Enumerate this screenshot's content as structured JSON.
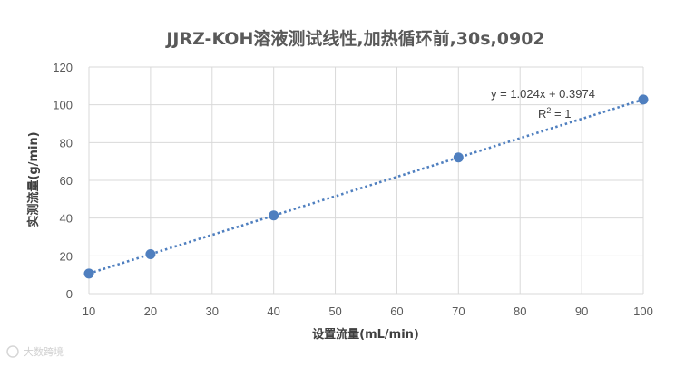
{
  "chart_data": {
    "type": "scatter",
    "title": "JJRZ-KOH溶液测试线性,加热循环前,30s,0902",
    "xlabel": "设置流量(mL/min)",
    "ylabel": "实测流量(g/min)",
    "xlim": [
      10,
      100
    ],
    "ylim": [
      0,
      120
    ],
    "xticks": [
      "10",
      "20",
      "30",
      "40",
      "50",
      "60",
      "70",
      "80",
      "90",
      "100"
    ],
    "yticks": [
      "0",
      "20",
      "40",
      "60",
      "80",
      "100",
      "120"
    ],
    "grid": true,
    "series": [
      {
        "x": [
          10,
          20,
          40,
          70,
          100
        ],
        "y": [
          10.6,
          20.9,
          41.4,
          72.1,
          102.8
        ],
        "color": "#4f7fbf"
      }
    ],
    "trendline": {
      "type": "linear",
      "slope": 1.024,
      "intercept": 0.3974,
      "color": "#4f7fbf",
      "style": "dotted"
    },
    "annotations": {
      "equation": "y = 1.024x + 0.3974",
      "r2_prefix": "R",
      "r2_sup": "2",
      "r2_value": " = 1"
    }
  },
  "watermark": "大数跨境"
}
